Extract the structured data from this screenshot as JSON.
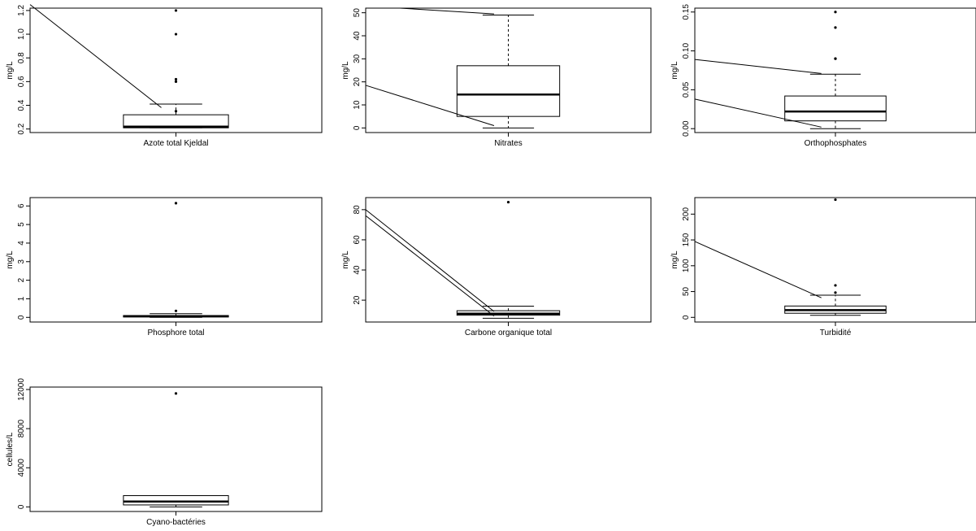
{
  "chart_data": [
    {
      "type": "boxplot",
      "xlabel": "Azote total Kjeldal",
      "ylabel": "mg/L",
      "ylim": [
        0.17,
        1.22
      ],
      "yticks": [
        0.2,
        0.4,
        0.6,
        0.8,
        1.0,
        1.2
      ],
      "ytick_labels": [
        "0.2",
        "0.4",
        "0.6",
        "0.8",
        "1.0",
        "1.2"
      ],
      "box": {
        "whisker_low": 0.21,
        "q1": 0.21,
        "median": 0.22,
        "q3": 0.32,
        "whisker_high": 0.41
      },
      "outliers": [
        0.35,
        0.6,
        0.62,
        1.0,
        1.2
      ],
      "lines": [
        [
          [
            0.0,
            1.25
          ],
          [
            0.45,
            0.38
          ]
        ]
      ]
    },
    {
      "type": "boxplot",
      "xlabel": "Nitrates",
      "ylabel": "mg/L",
      "ylim": [
        -2,
        52
      ],
      "yticks": [
        0,
        10,
        20,
        30,
        40,
        50
      ],
      "ytick_labels": [
        "0",
        "10",
        "20",
        "30",
        "40",
        "50"
      ],
      "box": {
        "whisker_low": 0,
        "q1": 5,
        "median": 14.5,
        "q3": 27,
        "whisker_high": 49
      },
      "outliers": [],
      "lines": [
        [
          [
            0.0,
            18.5
          ],
          [
            0.45,
            1.0
          ]
        ],
        [
          [
            0.12,
            52
          ],
          [
            0.45,
            49.5
          ]
        ]
      ]
    },
    {
      "type": "boxplot",
      "xlabel": "Orthophosphates",
      "ylabel": "mg/L",
      "ylim": [
        -0.005,
        0.155
      ],
      "yticks": [
        0.0,
        0.05,
        0.1,
        0.15
      ],
      "ytick_labels": [
        "0.00",
        "0.05",
        "0.10",
        "0.15"
      ],
      "box": {
        "whisker_low": 0.0,
        "q1": 0.01,
        "median": 0.022,
        "q3": 0.042,
        "whisker_high": 0.07
      },
      "outliers": [
        0.09,
        0.09,
        0.13,
        0.15
      ],
      "lines": [
        [
          [
            0.0,
            0.089
          ],
          [
            0.45,
            0.071
          ]
        ],
        [
          [
            0.0,
            0.038
          ],
          [
            0.45,
            0.002
          ]
        ]
      ]
    },
    {
      "type": "boxplot",
      "xlabel": "Phosphore total",
      "ylabel": "mg/L",
      "ylim": [
        -0.25,
        6.45
      ],
      "yticks": [
        0,
        1,
        2,
        3,
        4,
        5,
        6
      ],
      "ytick_labels": [
        "0",
        "1",
        "2",
        "3",
        "4",
        "5",
        "6"
      ],
      "box": {
        "whisker_low": 0.0,
        "q1": 0.02,
        "median": 0.06,
        "q3": 0.1,
        "whisker_high": 0.2
      },
      "outliers": [
        0.35,
        6.15
      ],
      "lines": []
    },
    {
      "type": "boxplot",
      "xlabel": "Carbone organique total",
      "ylabel": "mg/L",
      "ylim": [
        5.5,
        88
      ],
      "yticks": [
        20,
        40,
        60,
        80
      ],
      "ytick_labels": [
        "20",
        "40",
        "60",
        "80"
      ],
      "box": {
        "whisker_low": 8,
        "q1": 10,
        "median": 11,
        "q3": 13,
        "whisker_high": 16
      },
      "outliers": [
        85
      ],
      "lines": [
        [
          [
            0.0,
            80
          ],
          [
            0.45,
            12.5
          ]
        ],
        [
          [
            0.0,
            76
          ],
          [
            0.45,
            9.5
          ]
        ]
      ]
    },
    {
      "type": "boxplot",
      "xlabel": "Turbidité",
      "ylabel": "mg/L",
      "ylim": [
        -9,
        232
      ],
      "yticks": [
        0,
        50,
        100,
        150,
        200
      ],
      "ytick_labels": [
        "0",
        "50",
        "100",
        "150",
        "200"
      ],
      "box": {
        "whisker_low": 4,
        "q1": 8,
        "median": 14,
        "q3": 22,
        "whisker_high": 43
      },
      "outliers": [
        48,
        62,
        228
      ],
      "lines": [
        [
          [
            0.0,
            147
          ],
          [
            0.45,
            38
          ]
        ]
      ]
    },
    {
      "type": "boxplot",
      "xlabel": "Cyano-bactéries",
      "ylabel": "cellules/L",
      "ylim": [
        -470,
        12250
      ],
      "yticks": [
        0,
        4000,
        8000,
        12000
      ],
      "ytick_labels": [
        "0",
        "4000",
        "8000",
        "12000"
      ],
      "box": {
        "whisker_low": 0,
        "q1": 200,
        "median": 550,
        "q3": 1150,
        "whisker_high": 1150
      },
      "outliers": [
        11600
      ],
      "lines": []
    }
  ]
}
